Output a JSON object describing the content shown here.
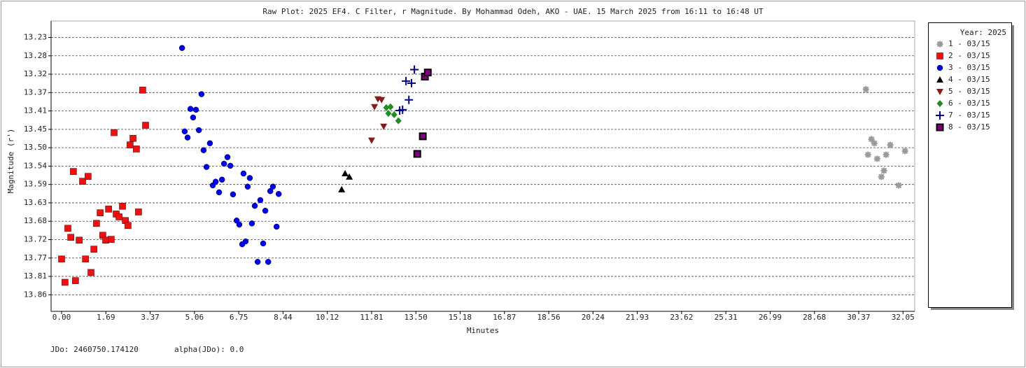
{
  "chart_data": {
    "type": "scatter",
    "title": "Raw Plot: 2025 EF4. C Filter, r Magnitude.  By Mohammad Odeh, AKO - UAE. 15 March 2025 from 16:11 to 16:48 UT",
    "x_label": "Minutes",
    "y_label": "Magnitude (r')",
    "legend_title": "Year: 2025",
    "legend_position": "right",
    "annotations": [
      "JDo: 2460750.174120",
      "alpha(JDo): 0.0"
    ],
    "grid": true,
    "grid_axis": "y",
    "y_inverted": true,
    "xlim": [
      -0.4,
      32.5
    ],
    "ylim": [
      13.19,
      13.9
    ],
    "xticks": [
      {
        "value": 0.0005,
        "label": "0.00"
      },
      {
        "value": 1.6875,
        "label": "1.69"
      },
      {
        "value": 3.3745,
        "label": "3.37"
      },
      {
        "value": 5.0615,
        "label": "5.06"
      },
      {
        "value": 6.7485,
        "label": "6.75"
      },
      {
        "value": 8.4355,
        "label": "8.44"
      },
      {
        "value": 10.1225,
        "label": "10.12"
      },
      {
        "value": 11.8095,
        "label": "11.81"
      },
      {
        "value": 13.4965,
        "label": "13.50"
      },
      {
        "value": 15.1835,
        "label": "15.18"
      },
      {
        "value": 16.8705,
        "label": "16.87"
      },
      {
        "value": 18.5575,
        "label": "18.56"
      },
      {
        "value": 20.2445,
        "label": "20.24"
      },
      {
        "value": 21.9315,
        "label": "21.93"
      },
      {
        "value": 23.6185,
        "label": "23.62"
      },
      {
        "value": 25.3055,
        "label": "25.31"
      },
      {
        "value": 26.9925,
        "label": "26.99"
      },
      {
        "value": 28.6795,
        "label": "28.68"
      },
      {
        "value": 30.3665,
        "label": "30.37"
      },
      {
        "value": 32.0535,
        "label": "32.05"
      }
    ],
    "yticks": [
      {
        "value": 13.2302,
        "label": "13.23"
      },
      {
        "value": 13.27515,
        "label": "13.28"
      },
      {
        "value": 13.3201,
        "label": "13.32"
      },
      {
        "value": 13.36505,
        "label": "13.37"
      },
      13.41,
      {
        "value": 13.45495,
        "label": "13.45"
      },
      {
        "value": 13.4999,
        "label": "13.50"
      },
      {
        "value": 13.54485,
        "label": "13.54"
      },
      {
        "value": 13.5898,
        "label": "13.59"
      },
      {
        "value": 13.63475,
        "label": "13.63"
      },
      {
        "value": 13.6797,
        "label": "13.68"
      },
      {
        "value": 13.72465,
        "label": "13.72"
      },
      {
        "value": 13.7696,
        "label": "13.77"
      },
      {
        "value": 13.81455,
        "label": "13.81"
      },
      {
        "value": 13.8595,
        "label": "13.86"
      }
    ],
    "series": [
      {
        "name": "1 - 03/15",
        "color": "#9a9a9a",
        "marker": "asterisk",
        "x": [
          30.64,
          30.85,
          30.96,
          30.72,
          31.07,
          31.57,
          31.41,
          32.13,
          31.33,
          31.23,
          31.89
        ],
        "values": [
          13.357,
          13.479,
          13.489,
          13.517,
          13.527,
          13.493,
          13.517,
          13.508,
          13.556,
          13.571,
          13.592
        ]
      },
      {
        "name": "2 - 03/15",
        "color": "#ee1111",
        "marker": "square",
        "x": [
          0.0,
          0.13,
          0.24,
          0.35,
          0.45,
          0.53,
          0.67,
          0.8,
          0.91,
          1.01,
          1.12,
          1.23,
          1.33,
          1.47,
          1.57,
          1.68,
          1.79,
          1.89,
          2.0,
          2.08,
          2.19,
          2.32,
          2.43,
          2.53,
          2.61,
          2.72,
          2.85,
          2.93,
          3.09,
          3.2
        ],
        "values": [
          13.772,
          13.829,
          13.697,
          13.719,
          13.558,
          13.825,
          13.726,
          13.582,
          13.772,
          13.57,
          13.805,
          13.748,
          13.685,
          13.659,
          13.714,
          13.726,
          13.65,
          13.724,
          13.463,
          13.662,
          13.669,
          13.643,
          13.678,
          13.69,
          13.493,
          13.477,
          13.503,
          13.657,
          13.359,
          13.445
        ]
      },
      {
        "name": "3 - 03/15",
        "color": "#0000ee",
        "marker": "circle",
        "x": [
          4.59,
          4.69,
          4.8,
          4.91,
          5.01,
          5.12,
          5.23,
          5.33,
          5.41,
          5.52,
          5.65,
          5.76,
          5.87,
          6.0,
          6.11,
          6.19,
          6.32,
          6.43,
          6.53,
          6.67,
          6.77,
          6.88,
          6.93,
          7.01,
          7.09,
          7.17,
          7.25,
          7.36,
          7.47,
          7.57,
          7.68,
          7.76,
          7.87,
          7.95,
          8.05,
          8.19,
          8.27
        ],
        "values": [
          13.256,
          13.46,
          13.475,
          13.405,
          13.426,
          13.407,
          13.457,
          13.369,
          13.506,
          13.547,
          13.489,
          13.592,
          13.583,
          13.609,
          13.578,
          13.539,
          13.523,
          13.544,
          13.614,
          13.678,
          13.688,
          13.736,
          13.563,
          13.729,
          13.595,
          13.574,
          13.685,
          13.642,
          13.779,
          13.628,
          13.734,
          13.654,
          13.779,
          13.606,
          13.595,
          13.693,
          13.613
        ]
      },
      {
        "name": "4 - 03/15",
        "color": "#000000",
        "marker": "triangle-up",
        "x": [
          10.67,
          10.8,
          10.96
        ],
        "values": [
          13.602,
          13.563,
          13.571
        ]
      },
      {
        "name": "5 - 03/15",
        "color": "#8b1a1a",
        "marker": "triangle-down",
        "x": [
          11.81,
          11.92,
          12.05,
          12.19,
          12.27
        ],
        "values": [
          13.482,
          13.4,
          13.381,
          13.383,
          13.448
        ]
      },
      {
        "name": "6 - 03/15",
        "color": "#228b22",
        "marker": "diamond",
        "x": [
          12.37,
          12.45,
          12.53,
          12.67,
          12.83
        ],
        "values": [
          13.402,
          13.416,
          13.4,
          13.419,
          13.434
        ]
      },
      {
        "name": "7 - 03/15",
        "color": "#000080",
        "marker": "plus",
        "x": [
          12.88,
          12.99,
          13.12,
          13.23,
          13.33,
          13.44
        ],
        "values": [
          13.409,
          13.407,
          13.337,
          13.383,
          13.342,
          13.309
        ]
      },
      {
        "name": "8 - 03/15",
        "color": "#800080",
        "marker": "square-edged",
        "x": [
          13.55,
          13.76,
          13.84,
          13.95
        ],
        "values": [
          13.515,
          13.472,
          13.326,
          13.316
        ]
      }
    ]
  }
}
